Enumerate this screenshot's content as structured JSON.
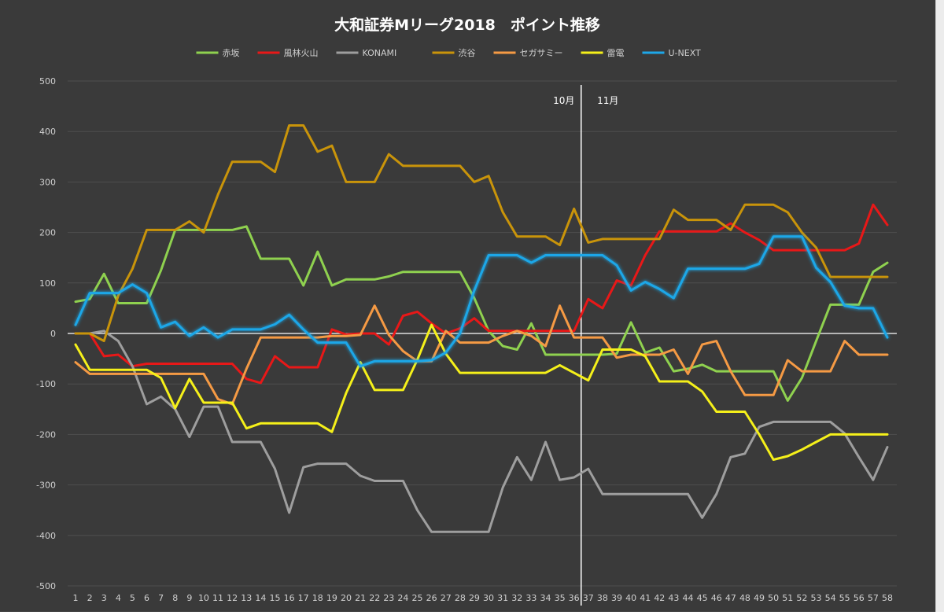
{
  "chart_data": {
    "type": "line",
    "title": "大和証券Mリーグ2018　ポイント推移",
    "xlabel": "",
    "ylabel": "",
    "ylim": [
      -500,
      500
    ],
    "yticks": [
      500,
      400,
      300,
      200,
      100,
      0,
      -100,
      -200,
      -300,
      -400,
      -500
    ],
    "x": [
      1,
      2,
      3,
      4,
      5,
      6,
      7,
      8,
      9,
      10,
      11,
      12,
      13,
      14,
      15,
      16,
      17,
      18,
      19,
      20,
      21,
      22,
      23,
      24,
      25,
      26,
      27,
      28,
      29,
      30,
      31,
      32,
      33,
      34,
      35,
      36,
      37,
      38,
      39,
      40,
      41,
      42,
      43,
      44,
      45,
      46,
      47,
      48,
      49,
      50,
      51,
      52,
      53,
      54,
      55,
      56,
      57,
      58
    ],
    "grid": true,
    "legend_position": "top",
    "zero_line": true,
    "month_divider": {
      "x": 36.5,
      "left_label": "10月",
      "right_label": "11月"
    },
    "series": [
      {
        "name": "赤坂",
        "color": "#8fd14f",
        "values": [
          63,
          68,
          118,
          60,
          60,
          60,
          125,
          205,
          205,
          205,
          205,
          205,
          212,
          148,
          148,
          148,
          95,
          162,
          95,
          107,
          107,
          107,
          113,
          122,
          122,
          122,
          122,
          122,
          70,
          5,
          -25,
          -32,
          20,
          -42,
          -42,
          -42,
          -42,
          -42,
          -40,
          22,
          -38,
          -28,
          -75,
          -70,
          -62,
          -75,
          -75,
          -75,
          -75,
          -75,
          -133,
          -88,
          -15,
          57,
          57,
          57,
          122,
          140
        ]
      },
      {
        "name": "風林火山",
        "color": "#e81818",
        "values": [
          0,
          0,
          -45,
          -42,
          -65,
          -60,
          -60,
          -60,
          -60,
          -60,
          -60,
          -60,
          -90,
          -98,
          -45,
          -67,
          -67,
          -67,
          8,
          -2,
          0,
          0,
          -22,
          35,
          43,
          20,
          0,
          10,
          30,
          5,
          5,
          5,
          5,
          5,
          5,
          5,
          68,
          50,
          105,
          95,
          155,
          202,
          202,
          202,
          202,
          202,
          218,
          200,
          185,
          165,
          165,
          165,
          165,
          165,
          165,
          178,
          255,
          215
        ]
      },
      {
        "name": "KONAMI",
        "color": "#9e9e9e",
        "values": [
          0,
          0,
          5,
          -15,
          -65,
          -140,
          -125,
          -150,
          -205,
          -145,
          -145,
          -215,
          -215,
          -215,
          -268,
          -355,
          -265,
          -258,
          -258,
          -258,
          -282,
          -292,
          -292,
          -292,
          -350,
          -393,
          -393,
          -393,
          -393,
          -393,
          -305,
          -245,
          -290,
          -215,
          -290,
          -285,
          -268,
          -318,
          -318,
          -318,
          -318,
          -318,
          -318,
          -318,
          -365,
          -318,
          -245,
          -238,
          -185,
          -175,
          -175,
          -175,
          -175,
          -175,
          -198,
          -245,
          -290,
          -225
        ]
      },
      {
        "name": "渋谷",
        "color": "#c9940a",
        "values": [
          0,
          0,
          -15,
          75,
          128,
          205,
          205,
          205,
          222,
          200,
          275,
          340,
          340,
          340,
          320,
          412,
          412,
          360,
          372,
          300,
          300,
          300,
          355,
          332,
          332,
          332,
          332,
          332,
          300,
          312,
          240,
          192,
          192,
          192,
          175,
          247,
          180,
          187,
          187,
          187,
          187,
          187,
          245,
          225,
          225,
          225,
          205,
          255,
          255,
          255,
          240,
          200,
          170,
          112,
          112,
          112,
          112,
          112
        ]
      },
      {
        "name": "セガサミー",
        "color": "#f59a44",
        "values": [
          -57,
          -80,
          -80,
          -80,
          -80,
          -80,
          -80,
          -80,
          -80,
          -80,
          -130,
          -140,
          -70,
          -8,
          -8,
          -8,
          -8,
          -8,
          -5,
          -5,
          -3,
          55,
          -3,
          -35,
          -55,
          -55,
          5,
          -18,
          -18,
          -18,
          -5,
          5,
          -5,
          -25,
          55,
          -8,
          -8,
          -8,
          -48,
          -42,
          -42,
          -42,
          -32,
          -80,
          -22,
          -15,
          -75,
          -122,
          -122,
          -122,
          -53,
          -75,
          -75,
          -75,
          -15,
          -42,
          -42,
          -42
        ]
      },
      {
        "name": "雷電",
        "color": "#f5f01a",
        "values": [
          -22,
          -72,
          -72,
          -72,
          -72,
          -72,
          -88,
          -148,
          -90,
          -137,
          -137,
          -137,
          -188,
          -178,
          -178,
          -178,
          -178,
          -178,
          -195,
          -118,
          -57,
          -112,
          -112,
          -112,
          -52,
          17,
          -40,
          -78,
          -78,
          -78,
          -78,
          -78,
          -78,
          -78,
          -63,
          -78,
          -93,
          -32,
          -32,
          -32,
          -45,
          -95,
          -95,
          -95,
          -115,
          -155,
          -155,
          -155,
          -200,
          -250,
          -243,
          -230,
          -215,
          -200,
          -200,
          -200,
          -200,
          -200
        ]
      },
      {
        "name": "U-NEXT",
        "color": "#1ea7e8",
        "values": [
          17,
          80,
          80,
          80,
          97,
          80,
          12,
          23,
          -5,
          12,
          -8,
          8,
          8,
          8,
          18,
          37,
          8,
          -18,
          -18,
          -18,
          -65,
          -55,
          -55,
          -55,
          -55,
          -53,
          -38,
          0,
          85,
          155,
          155,
          155,
          140,
          155,
          155,
          155,
          155,
          155,
          135,
          85,
          102,
          88,
          70,
          128,
          128,
          128,
          128,
          128,
          138,
          192,
          192,
          192,
          130,
          102,
          55,
          50,
          50,
          -8
        ]
      }
    ]
  }
}
